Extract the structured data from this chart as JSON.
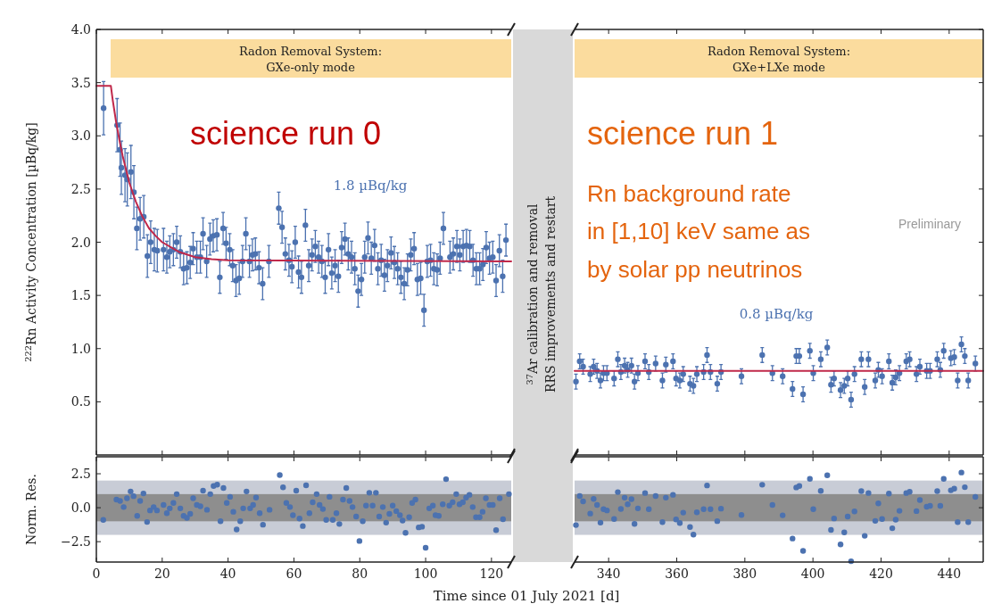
{
  "chart_data": [
    {
      "type": "scatter",
      "ylabel": "$^{222}$Rn Activity Concentration [µBq/kg]",
      "marker": "circle",
      "tick_labels": "y",
      "xlim": [
        0,
        126
      ],
      "xticks": [
        {
          "value": 0,
          "label": null
        },
        {
          "value": 20,
          "label": null
        },
        {
          "value": 40,
          "label": null
        },
        {
          "value": 60,
          "label": null
        },
        {
          "value": 80,
          "label": null
        },
        {
          "value": 100,
          "label": null
        },
        {
          "value": 120,
          "label": null
        }
      ],
      "ylim": [
        0,
        4
      ],
      "yticks": [
        {
          "value": 0.5,
          "label": "0.5"
        },
        {
          "value": 1,
          "label": "1.0"
        },
        {
          "value": 1.5,
          "label": "1.5"
        },
        {
          "value": 2,
          "label": "2.0"
        },
        {
          "value": 2.5,
          "label": "2.5"
        },
        {
          "value": 3,
          "label": "3.0"
        },
        {
          "value": 3.5,
          "label": "3.5"
        },
        {
          "value": 4,
          "label": "4.0"
        }
      ],
      "annotations": [
        "science run 0",
        "1.8 µBq/kg",
        "$^{37}$Ar calibration and removal",
        "RRS improvements and restart",
        "Radon Removal System:",
        "GXe-only mode"
      ],
      "series": [
        {
          "color": "#4c72b0",
          "x": [
            2.2,
            6.3,
            7.2,
            7.6,
            8.7,
            9.4,
            10.5,
            11.4,
            12.3,
            13.3,
            14.4,
            15.5,
            16.5,
            17.6,
            18.5,
            20.4,
            21.4,
            22.3,
            23.4,
            24.4,
            25.5,
            26.5,
            27.5,
            28.5,
            29.4,
            30.5,
            31.6,
            32.4,
            33.5,
            34.5,
            35.5,
            36.6,
            37.5,
            38.5,
            39.4,
            40.5,
            41.4,
            42.4,
            43.4,
            44.4,
            45.4,
            46.5,
            47.4,
            48.3,
            49.4,
            50.5,
            52.4,
            55.4,
            56.4,
            57.4,
            58.5,
            59.4,
            60.4,
            61.4,
            62.3,
            63.5,
            64.5,
            65.5,
            66.5,
            67.5,
            68.5,
            69.5,
            70.5,
            71.5,
            72.5,
            73.5,
            74.5,
            75.5,
            76.5,
            77.5,
            78.5,
            79.5,
            80.5,
            81.5,
            82.5,
            83.5,
            84.5,
            85.5,
            86.5,
            87.5,
            88.4,
            89.5,
            90.5,
            91.5,
            92.5,
            93.5,
            94.5,
            95.5,
            96.5,
            97.5,
            98.5,
            99.5,
            100.5,
            101.5,
            102.5,
            103.5,
            104.4,
            105.4,
            107.4,
            108.4,
            109.5,
            110.4,
            111.4,
            112.4,
            113.4,
            114.4,
            115.4,
            116.4,
            117.4,
            118.4,
            119.4,
            120.4,
            121.4,
            122.4,
            123.4,
            124.4
          ],
          "values": [
            3.26,
            3.1,
            2.87,
            2.7,
            2.63,
            2.59,
            2.66,
            2.47,
            2.13,
            2.22,
            2.24,
            1.87,
            2.0,
            1.93,
            1.92,
            1.93,
            1.86,
            1.91,
            1.93,
            2.0,
            1.91,
            1.75,
            1.76,
            1.81,
            1.94,
            1.86,
            1.86,
            2.08,
            1.82,
            2.03,
            2.06,
            2.07,
            1.67,
            2.13,
            1.99,
            1.93,
            1.78,
            1.64,
            1.66,
            1.82,
            2.08,
            1.82,
            1.88,
            1.89,
            1.76,
            1.61,
            1.82,
            2.32,
            2.14,
            1.89,
            1.83,
            1.77,
            2.0,
            1.72,
            1.67,
            2.16,
            1.78,
            1.88,
            1.96,
            1.86,
            1.82,
            1.67,
            1.93,
            1.71,
            1.78,
            1.68,
            1.95,
            2.03,
            1.89,
            1.86,
            1.75,
            1.54,
            1.65,
            1.86,
            2.04,
            1.85,
            1.97,
            1.75,
            1.83,
            1.69,
            1.78,
            1.9,
            1.81,
            1.75,
            1.67,
            1.61,
            1.74,
            1.88,
            1.94,
            1.65,
            1.66,
            1.36,
            1.82,
            1.83,
            1.75,
            1.74,
            1.85,
            2.13,
            1.86,
            1.89,
            1.96,
            1.88,
            1.96,
            1.97,
            1.96,
            1.83,
            1.75,
            1.75,
            1.79,
            1.95,
            1.85,
            1.86,
            1.64,
            1.92,
            1.68,
            2.02
          ],
          "errors": [
            0.25,
            0.25,
            0.25,
            0.25,
            0.25,
            0.25,
            0.25,
            0.25,
            0.2,
            0.2,
            0.2,
            0.2,
            0.2,
            0.2,
            0.2,
            0.2,
            0.15,
            0.15,
            0.15,
            0.15,
            0.15,
            0.15,
            0.15,
            0.15,
            0.15,
            0.15,
            0.15,
            0.15,
            0.15,
            0.15,
            0.15,
            0.15,
            0.15,
            0.15,
            0.15,
            0.15,
            0.15,
            0.15,
            0.15,
            0.15,
            0.15,
            0.15,
            0.15,
            0.15,
            0.15,
            0.15,
            0.15,
            0.15,
            0.15,
            0.15,
            0.15,
            0.15,
            0.15,
            0.15,
            0.15,
            0.15,
            0.15,
            0.15,
            0.15,
            0.15,
            0.15,
            0.15,
            0.15,
            0.15,
            0.15,
            0.15,
            0.15,
            0.15,
            0.15,
            0.15,
            0.15,
            0.15,
            0.15,
            0.15,
            0.15,
            0.15,
            0.15,
            0.15,
            0.15,
            0.15,
            0.15,
            0.15,
            0.15,
            0.15,
            0.15,
            0.15,
            0.15,
            0.15,
            0.15,
            0.15,
            0.15,
            0.15,
            0.15,
            0.15,
            0.15,
            0.15,
            0.15,
            0.15,
            0.15,
            0.15,
            0.15,
            0.15,
            0.15,
            0.15,
            0.15,
            0.15,
            0.15,
            0.15,
            0.15,
            0.15,
            0.15,
            0.15,
            0.15,
            0.15,
            0.15,
            0.15
          ]
        },
        {
          "type": "line",
          "marker": "none",
          "color": "#c0284a",
          "x": [
            0,
            4.4,
            5,
            6,
            7,
            8,
            10,
            12,
            14,
            16,
            18,
            20,
            25,
            30,
            35,
            40,
            126
          ],
          "values": [
            3.47,
            3.47,
            3.33,
            3.13,
            2.96,
            2.81,
            2.56,
            2.38,
            2.24,
            2.13,
            2.06,
            2.0,
            1.91,
            1.86,
            1.84,
            1.83,
            1.82
          ]
        }
      ]
    },
    {
      "type": "scatter",
      "marker": "circle",
      "tick_labels": false,
      "xlim": [
        330,
        450
      ],
      "xticks": [
        {
          "value": 340,
          "label": null
        },
        {
          "value": 360,
          "label": null
        },
        {
          "value": 380,
          "label": null
        },
        {
          "value": 400,
          "label": null
        },
        {
          "value": 420,
          "label": null
        },
        {
          "value": 440,
          "label": null
        }
      ],
      "ylim": [
        0,
        4
      ],
      "yticks": [
        {
          "value": 0.5,
          "label": null
        },
        {
          "value": 1,
          "label": null
        },
        {
          "value": 1.5,
          "label": null
        },
        {
          "value": 2,
          "label": null
        },
        {
          "value": 2.5,
          "label": null
        },
        {
          "value": 3,
          "label": null
        },
        {
          "value": 3.5,
          "label": null
        },
        {
          "value": 4,
          "label": null
        }
      ],
      "annotations": [
        "science run 1",
        "Rn background rate",
        "in [1,10] keV same as",
        "by solar pp neutrinos",
        "0.8 µBq/kg",
        "Preliminary",
        "Radon Removal System:",
        "GXe+LXe mode"
      ],
      "series": [
        {
          "color": "#4c72b0",
          "x": [
            330.4,
            331.5,
            332.5,
            334.6,
            335.6,
            336.6,
            337.6,
            338.5,
            339.5,
            341.6,
            342.7,
            343.6,
            344.7,
            345.6,
            346.7,
            347.6,
            348.6,
            350.7,
            351.8,
            353.8,
            355.8,
            356.8,
            358.9,
            359.8,
            360.9,
            361.9,
            363.9,
            364.9,
            365.9,
            367.9,
            368.9,
            369.9,
            371.9,
            373.0,
            379.0,
            385.1,
            388.1,
            391.1,
            394.0,
            395.1,
            396.0,
            397.1,
            399.1,
            400.1,
            402.3,
            404.2,
            405.3,
            406.2,
            408.1,
            409.2,
            410.2,
            411.2,
            412.2,
            414.2,
            415.2,
            416.3,
            418.3,
            419.2,
            420.3,
            422.3,
            423.3,
            424.3,
            425.4,
            427.4,
            428.4,
            430.4,
            431.4,
            433.4,
            434.4,
            436.5,
            437.4,
            438.4,
            440.5,
            441.5,
            442.5,
            443.6,
            444.6,
            445.6,
            447.7
          ],
          "values": [
            0.69,
            0.88,
            0.83,
            0.76,
            0.83,
            0.79,
            0.7,
            0.77,
            0.77,
            0.72,
            0.9,
            0.78,
            0.84,
            0.8,
            0.84,
            0.69,
            0.77,
            0.88,
            0.78,
            0.86,
            0.7,
            0.85,
            0.88,
            0.72,
            0.7,
            0.76,
            0.67,
            0.65,
            0.76,
            0.78,
            0.94,
            0.78,
            0.67,
            0.78,
            0.74,
            0.94,
            0.77,
            0.74,
            0.62,
            0.93,
            0.93,
            0.57,
            0.98,
            0.77,
            0.9,
            1.01,
            0.66,
            0.72,
            0.61,
            0.65,
            0.72,
            0.52,
            0.76,
            0.9,
            0.64,
            0.9,
            0.7,
            0.8,
            0.74,
            0.88,
            0.68,
            0.73,
            0.77,
            0.88,
            0.9,
            0.76,
            0.83,
            0.79,
            0.79,
            0.9,
            0.8,
            0.98,
            0.91,
            0.92,
            0.7,
            1.04,
            0.93,
            0.7,
            0.86
          ],
          "errors": [
            0.07,
            0.07,
            0.07,
            0.07,
            0.07,
            0.07,
            0.07,
            0.07,
            0.07,
            0.07,
            0.07,
            0.07,
            0.07,
            0.07,
            0.07,
            0.07,
            0.07,
            0.07,
            0.07,
            0.07,
            0.07,
            0.07,
            0.07,
            0.07,
            0.07,
            0.07,
            0.07,
            0.07,
            0.07,
            0.07,
            0.07,
            0.07,
            0.07,
            0.07,
            0.07,
            0.07,
            0.07,
            0.07,
            0.07,
            0.07,
            0.07,
            0.07,
            0.07,
            0.07,
            0.07,
            0.07,
            0.07,
            0.07,
            0.07,
            0.07,
            0.07,
            0.07,
            0.07,
            0.07,
            0.07,
            0.07,
            0.07,
            0.07,
            0.07,
            0.07,
            0.07,
            0.07,
            0.07,
            0.07,
            0.07,
            0.07,
            0.07,
            0.07,
            0.07,
            0.07,
            0.07,
            0.07,
            0.07,
            0.07,
            0.07,
            0.07,
            0.07,
            0.07,
            0.07
          ]
        },
        {
          "type": "line",
          "marker": "none",
          "color": "#c0284a",
          "x": [
            330,
            450
          ],
          "values": [
            0.79,
            0.79
          ]
        }
      ]
    },
    {
      "type": "scatter",
      "xlabel": "Time since 01 July 2021 [d]",
      "ylabel": "Norm. Res.",
      "marker": "circle",
      "xlim": [
        0,
        126
      ],
      "xticks": [
        0,
        20,
        40,
        60,
        80,
        100,
        120
      ],
      "ylim": [
        -4,
        3.75
      ],
      "yticks": [
        {
          "value": -2.5,
          "label": "−2.5"
        },
        {
          "value": 0,
          "label": "0.0"
        },
        {
          "value": 2.5,
          "label": "2.5"
        }
      ],
      "bands": [
        {
          "axis": "y",
          "from": -2,
          "to": 2,
          "color": "#c8ccd6"
        },
        {
          "axis": "y",
          "from": -1,
          "to": 1,
          "color": "#8e8e8e"
        }
      ],
      "series": [
        {
          "color": "#4c72b0",
          "x": [
            2.1,
            6.1,
            7.2,
            8.3,
            9.3,
            10.4,
            11.3,
            12.4,
            13.3,
            14.3,
            15.4,
            16.3,
            17.4,
            18.4,
            20.4,
            21.4,
            22.3,
            23.4,
            24.4,
            25.5,
            26.5,
            27.5,
            28.5,
            29.4,
            30.5,
            31.6,
            32.4,
            33.6,
            34.6,
            35.6,
            36.7,
            37.7,
            38.6,
            39.6,
            40.6,
            41.6,
            42.6,
            43.7,
            44.6,
            45.6,
            46.7,
            47.6,
            48.5,
            49.6,
            50.6,
            52.6,
            55.7,
            56.7,
            57.7,
            58.8,
            59.7,
            60.7,
            61.7,
            62.7,
            63.7,
            64.7,
            65.7,
            66.9,
            67.8,
            68.8,
            69.8,
            70.8,
            71.8,
            72.9,
            73.8,
            74.9,
            75.9,
            76.9,
            77.8,
            78.9,
            79.9,
            80.9,
            81.9,
            82.9,
            83.9,
            84.9,
            85.9,
            87.0,
            88.0,
            89.0,
            90.0,
            91.1,
            92.2,
            93.0,
            93.9,
            95.0,
            95.9,
            96.9,
            97.9,
            98.9,
            100.0,
            101.1,
            102.2,
            103.0,
            104.0,
            105.2,
            106.2,
            107.2,
            108.2,
            109.3,
            110.3,
            111.3,
            112.3,
            113.3,
            114.3,
            115.3,
            116.4,
            117.3,
            118.3,
            119.4,
            120.4,
            121.4,
            122.5,
            123.5,
            125.3
          ],
          "values": [
            -0.9,
            0.6,
            0.5,
            0.05,
            0.7,
            1.2,
            0.85,
            -0.6,
            0.5,
            1.05,
            -1.05,
            -0.2,
            0.05,
            -0.2,
            0.2,
            -0.4,
            -0.05,
            0.35,
            1.0,
            -0.05,
            -0.6,
            -0.75,
            -0.45,
            0.7,
            0.2,
            0.1,
            1.25,
            -0.15,
            1.0,
            1.6,
            1.7,
            -1.0,
            1.45,
            0.35,
            0.8,
            -0.3,
            -1.6,
            -1.0,
            -0.05,
            1.2,
            -0.05,
            0.2,
            0.75,
            -0.4,
            -1.25,
            -0.15,
            2.4,
            1.5,
            0.35,
            0.05,
            -0.55,
            1.25,
            -0.8,
            -1.35,
            1.65,
            -0.4,
            0.4,
            1.0,
            0.2,
            -0.1,
            -0.9,
            0.8,
            -0.9,
            -0.4,
            -1.2,
            0.6,
            1.45,
            0.5,
            0.05,
            -0.65,
            -2.45,
            -1.0,
            0.15,
            1.1,
            0.15,
            1.1,
            -0.65,
            0.05,
            -1.1,
            -0.45,
            0.15,
            -0.25,
            -0.55,
            -0.95,
            -1.85,
            -0.7,
            0.35,
            0.6,
            -1.45,
            -1.4,
            -2.95,
            -0.05,
            0.15,
            -0.55,
            -0.6,
            0.25,
            2.1,
            0.15,
            0.4,
            1.0,
            0.25,
            0.4,
            0.75,
            0.95,
            0.05,
            -0.7,
            -0.7,
            -0.3,
            0.7,
            0.2,
            0.2,
            -1.65,
            0.7,
            -0.85,
            1.0
          ]
        }
      ]
    },
    {
      "type": "scatter",
      "marker": "circle",
      "tick_labels": "x",
      "xlim": [
        330,
        450
      ],
      "xticks": [
        340,
        360,
        380,
        400,
        420,
        440
      ],
      "ylim": [
        -4,
        3.75
      ],
      "yticks": [
        {
          "value": -2.5,
          "label": null
        },
        {
          "value": 0,
          "label": null
        },
        {
          "value": 2.5,
          "label": null
        }
      ],
      "bands": [
        {
          "axis": "y",
          "from": -2,
          "to": 2,
          "color": "#c8ccd6"
        },
        {
          "axis": "y",
          "from": -1,
          "to": 1,
          "color": "#8e8e8e"
        }
      ],
      "series": [
        {
          "color": "#4c72b0",
          "x": [
            330.4,
            331.5,
            332.5,
            334.6,
            335.6,
            336.6,
            337.6,
            338.5,
            339.5,
            341.6,
            342.7,
            343.6,
            344.7,
            345.6,
            346.7,
            347.6,
            348.6,
            350.7,
            351.8,
            353.8,
            355.8,
            356.8,
            358.9,
            359.8,
            360.9,
            361.9,
            363.9,
            364.9,
            365.9,
            367.9,
            368.9,
            369.9,
            371.9,
            373.0,
            379.0,
            385.1,
            388.1,
            391.1,
            394.0,
            395.1,
            396.0,
            397.1,
            399.1,
            400.1,
            402.3,
            404.2,
            405.3,
            406.2,
            408.1,
            409.2,
            410.2,
            411.2,
            412.2,
            414.2,
            415.2,
            416.3,
            418.3,
            419.2,
            420.3,
            422.3,
            423.3,
            424.3,
            425.4,
            427.4,
            428.4,
            430.4,
            431.4,
            433.4,
            434.4,
            436.5,
            437.4,
            438.4,
            440.5,
            441.5,
            442.5,
            443.6,
            444.6,
            445.6,
            447.7
          ],
          "values": [
            -1.28,
            0.86,
            0.47,
            -0.43,
            0.65,
            0.2,
            -1.1,
            -0.11,
            -0.2,
            -0.83,
            1.15,
            -0.09,
            0.74,
            0.25,
            0.63,
            -1.19,
            -0.05,
            1.08,
            -0.11,
            0.86,
            -1.06,
            0.74,
            0.95,
            -0.86,
            -1.13,
            -0.36,
            -1.42,
            -1.98,
            -0.34,
            -0.11,
            1.64,
            -0.11,
            -0.99,
            -0.07,
            -0.54,
            1.69,
            0.2,
            -0.56,
            -2.27,
            1.49,
            1.6,
            -3.18,
            2.12,
            -0.11,
            1.24,
            2.39,
            -1.64,
            -0.79,
            -2.7,
            -1.82,
            -0.65,
            -3.94,
            -0.27,
            1.22,
            -2.07,
            1.08,
            -0.97,
            0.32,
            -0.83,
            1.04,
            -1.51,
            -0.88,
            -0.23,
            1.08,
            1.17,
            -0.25,
            0.56,
            0.07,
            0.14,
            1.22,
            0.14,
            2.12,
            1.28,
            1.4,
            -1.06,
            2.59,
            1.51,
            -1.06,
            0.79
          ]
        }
      ]
    }
  ]
}
